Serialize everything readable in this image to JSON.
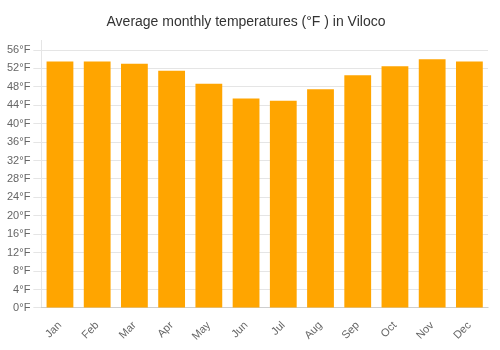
{
  "chart_data": {
    "type": "bar",
    "title": "Average monthly temperatures (°F ) in Viloco",
    "categories": [
      "Jan",
      "Feb",
      "Mar",
      "Apr",
      "May",
      "Jun",
      "Jul",
      "Aug",
      "Sep",
      "Oct",
      "Nov",
      "Dec"
    ],
    "values": [
      53.5,
      53.5,
      53.0,
      51.5,
      48.7,
      45.5,
      45.0,
      47.5,
      50.5,
      52.5,
      54.0,
      53.5
    ],
    "color": "#FFA500",
    "ylim": [
      0,
      58
    ],
    "yticks": [
      {
        "value": 0,
        "label": "0°F"
      },
      {
        "value": 4,
        "label": "4°F"
      },
      {
        "value": 8,
        "label": "8°F"
      },
      {
        "value": 12,
        "label": "12°F"
      },
      {
        "value": 16,
        "label": "16°F"
      },
      {
        "value": 20,
        "label": "20°F"
      },
      {
        "value": 24,
        "label": "24°F"
      },
      {
        "value": 28,
        "label": "28°F"
      },
      {
        "value": 32,
        "label": "32°F"
      },
      {
        "value": 36,
        "label": "36°F"
      },
      {
        "value": 40,
        "label": "40°F"
      },
      {
        "value": 44,
        "label": "44°F"
      },
      {
        "value": 48,
        "label": "48°F"
      },
      {
        "value": 52,
        "label": "52°F"
      },
      {
        "value": 56,
        "label": "56°F"
      }
    ],
    "grid": true
  }
}
